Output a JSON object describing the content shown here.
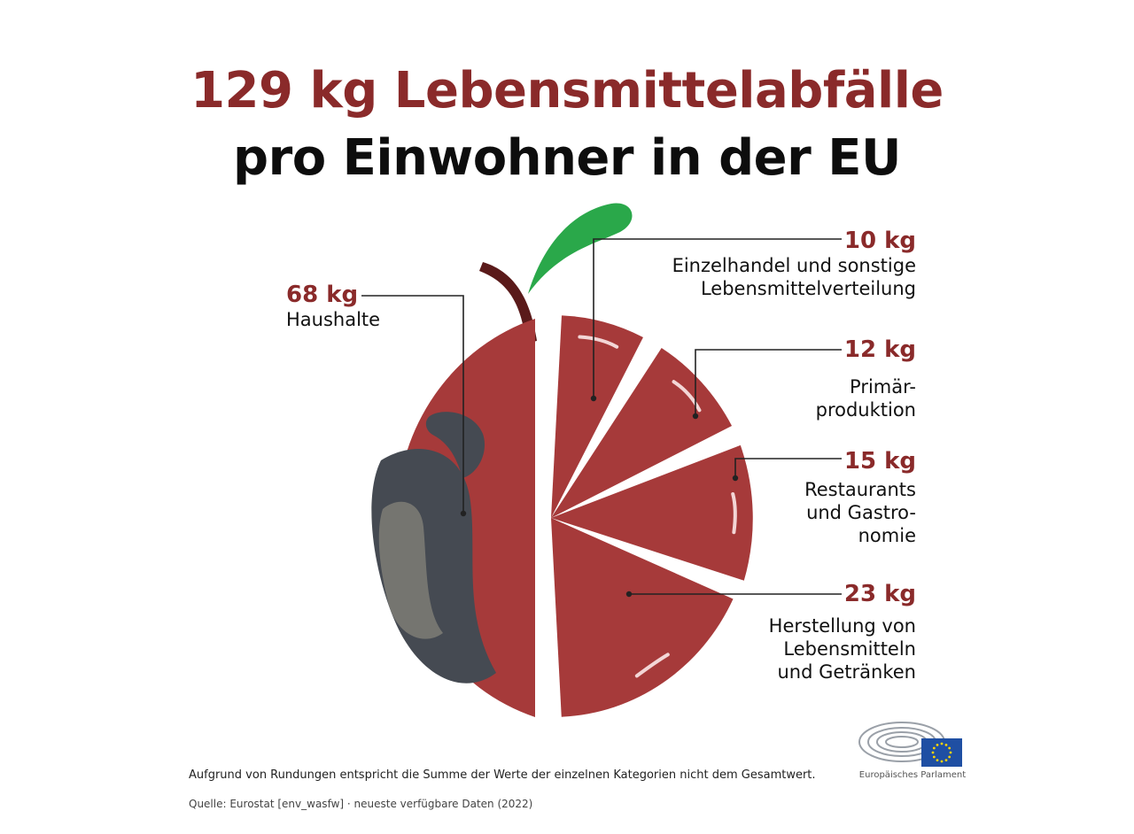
{
  "title": {
    "line1": "129 kg Lebensmittelabfälle",
    "line2": "pro Einwohner in der EU"
  },
  "colors": {
    "accent": "#8a2a2a",
    "apple": "#a63a3a",
    "apple_dark": "#8f2f2f",
    "rot": "#454a52",
    "rot_light": "#757570",
    "leaf": "#2aa84a",
    "stem": "#5a1a1a",
    "eu_blue": "#1f4fa3",
    "eu_star": "#ffd400"
  },
  "chart_data": {
    "type": "pie",
    "title": "129 kg Lebensmittelabfälle pro Einwohner in der EU",
    "total": 129,
    "unit": "kg",
    "slices": [
      {
        "label": "Haushalte",
        "value": 68,
        "value_label": "68 kg"
      },
      {
        "label": "Einzelhandel und sonstige\nLebensmittelverteilung",
        "value": 10,
        "value_label": "10 kg"
      },
      {
        "label": "Primär-\nproduktion",
        "value": 12,
        "value_label": "12 kg"
      },
      {
        "label": "Restaurants\nund Gastro-\nnomie",
        "value": 15,
        "value_label": "15 kg"
      },
      {
        "label": "Herstellung von\nLebensmitteln\nund Getränken",
        "value": 23,
        "value_label": "23 kg"
      }
    ]
  },
  "footer": {
    "note": "Aufgrund von Rundungen entspricht die Summe der Werte der einzelnen Kategorien nicht dem Gesamtwert.",
    "source": "Quelle: Eurostat [env_wasfw] · neueste verfügbare Daten (2022)"
  },
  "logo": {
    "text": "Europäisches Parlament",
    "icon": "european-parliament-logo"
  }
}
